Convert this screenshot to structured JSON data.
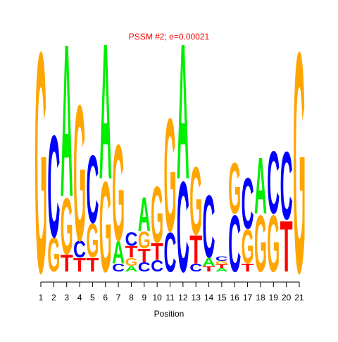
{
  "chart_data": {
    "type": "logo",
    "title": "PSSM #2; e=0.00021",
    "x_label": "Position",
    "xlim": [
      1,
      21
    ],
    "xticks": [
      1,
      2,
      3,
      4,
      5,
      6,
      7,
      8,
      9,
      10,
      11,
      12,
      13,
      14,
      15,
      16,
      17,
      18,
      19,
      20,
      21
    ],
    "ylim": [
      0,
      2
    ],
    "colors": {
      "A": "#00ee00",
      "C": "#0000ff",
      "G": "#ffa500",
      "T": "#ff0000"
    },
    "stacks": [
      [
        {
          "letter": "G",
          "value": 1.95
        }
      ],
      [
        {
          "letter": "G",
          "value": 0.3
        },
        {
          "letter": "C",
          "value": 0.9
        }
      ],
      [
        {
          "letter": "T",
          "value": 0.15
        },
        {
          "letter": "G",
          "value": 0.5
        },
        {
          "letter": "A",
          "value": 1.35
        }
      ],
      [
        {
          "letter": "T",
          "value": 0.12
        },
        {
          "letter": "C",
          "value": 0.15
        },
        {
          "letter": "G",
          "value": 1.2
        }
      ],
      [
        {
          "letter": "T",
          "value": 0.12
        },
        {
          "letter": "G",
          "value": 0.3
        },
        {
          "letter": "C",
          "value": 0.6
        }
      ],
      [
        {
          "letter": "G",
          "value": 0.8
        },
        {
          "letter": "A",
          "value": 1.2
        }
      ],
      [
        {
          "letter": "C",
          "value": 0.07
        },
        {
          "letter": "A",
          "value": 0.2
        },
        {
          "letter": "G",
          "value": 0.85
        }
      ],
      [
        {
          "letter": "A",
          "value": 0.05
        },
        {
          "letter": "G",
          "value": 0.07
        },
        {
          "letter": "T",
          "value": 0.1
        },
        {
          "letter": "C",
          "value": 0.12
        }
      ],
      [
        {
          "letter": "C",
          "value": 0.08
        },
        {
          "letter": "T",
          "value": 0.12
        },
        {
          "letter": "G",
          "value": 0.15
        },
        {
          "letter": "A",
          "value": 0.3
        }
      ],
      [
        {
          "letter": "C",
          "value": 0.1
        },
        {
          "letter": "T",
          "value": 0.15
        },
        {
          "letter": "G",
          "value": 0.5
        }
      ],
      [
        {
          "letter": "C",
          "value": 0.35
        },
        {
          "letter": "G",
          "value": 1.0
        }
      ],
      [
        {
          "letter": "C",
          "value": 0.8
        },
        {
          "letter": "A",
          "value": 1.2
        }
      ],
      [
        {
          "letter": "C",
          "value": 0.07
        },
        {
          "letter": "T",
          "value": 0.25
        },
        {
          "letter": "G",
          "value": 0.6
        }
      ],
      [
        {
          "letter": "T",
          "value": 0.05
        },
        {
          "letter": "A",
          "value": 0.07
        },
        {
          "letter": "C",
          "value": 0.55
        }
      ],
      [
        {
          "letter": "A",
          "value": 0.03
        },
        {
          "letter": "T",
          "value": 0.03
        },
        {
          "letter": "G",
          "value": 0.03
        },
        {
          "letter": "C",
          "value": 0.04
        }
      ],
      [
        {
          "letter": "C",
          "value": 0.5
        },
        {
          "letter": "G",
          "value": 0.45
        }
      ],
      [
        {
          "letter": "T",
          "value": 0.07
        },
        {
          "letter": "G",
          "value": 0.3
        },
        {
          "letter": "C",
          "value": 0.45
        }
      ],
      [
        {
          "letter": "G",
          "value": 0.5
        },
        {
          "letter": "A",
          "value": 0.5
        }
      ],
      [
        {
          "letter": "G",
          "value": 0.5
        },
        {
          "letter": "C",
          "value": 0.55
        }
      ],
      [
        {
          "letter": "T",
          "value": 0.45
        },
        {
          "letter": "C",
          "value": 0.6
        }
      ],
      [
        {
          "letter": "G",
          "value": 1.95
        }
      ]
    ]
  }
}
